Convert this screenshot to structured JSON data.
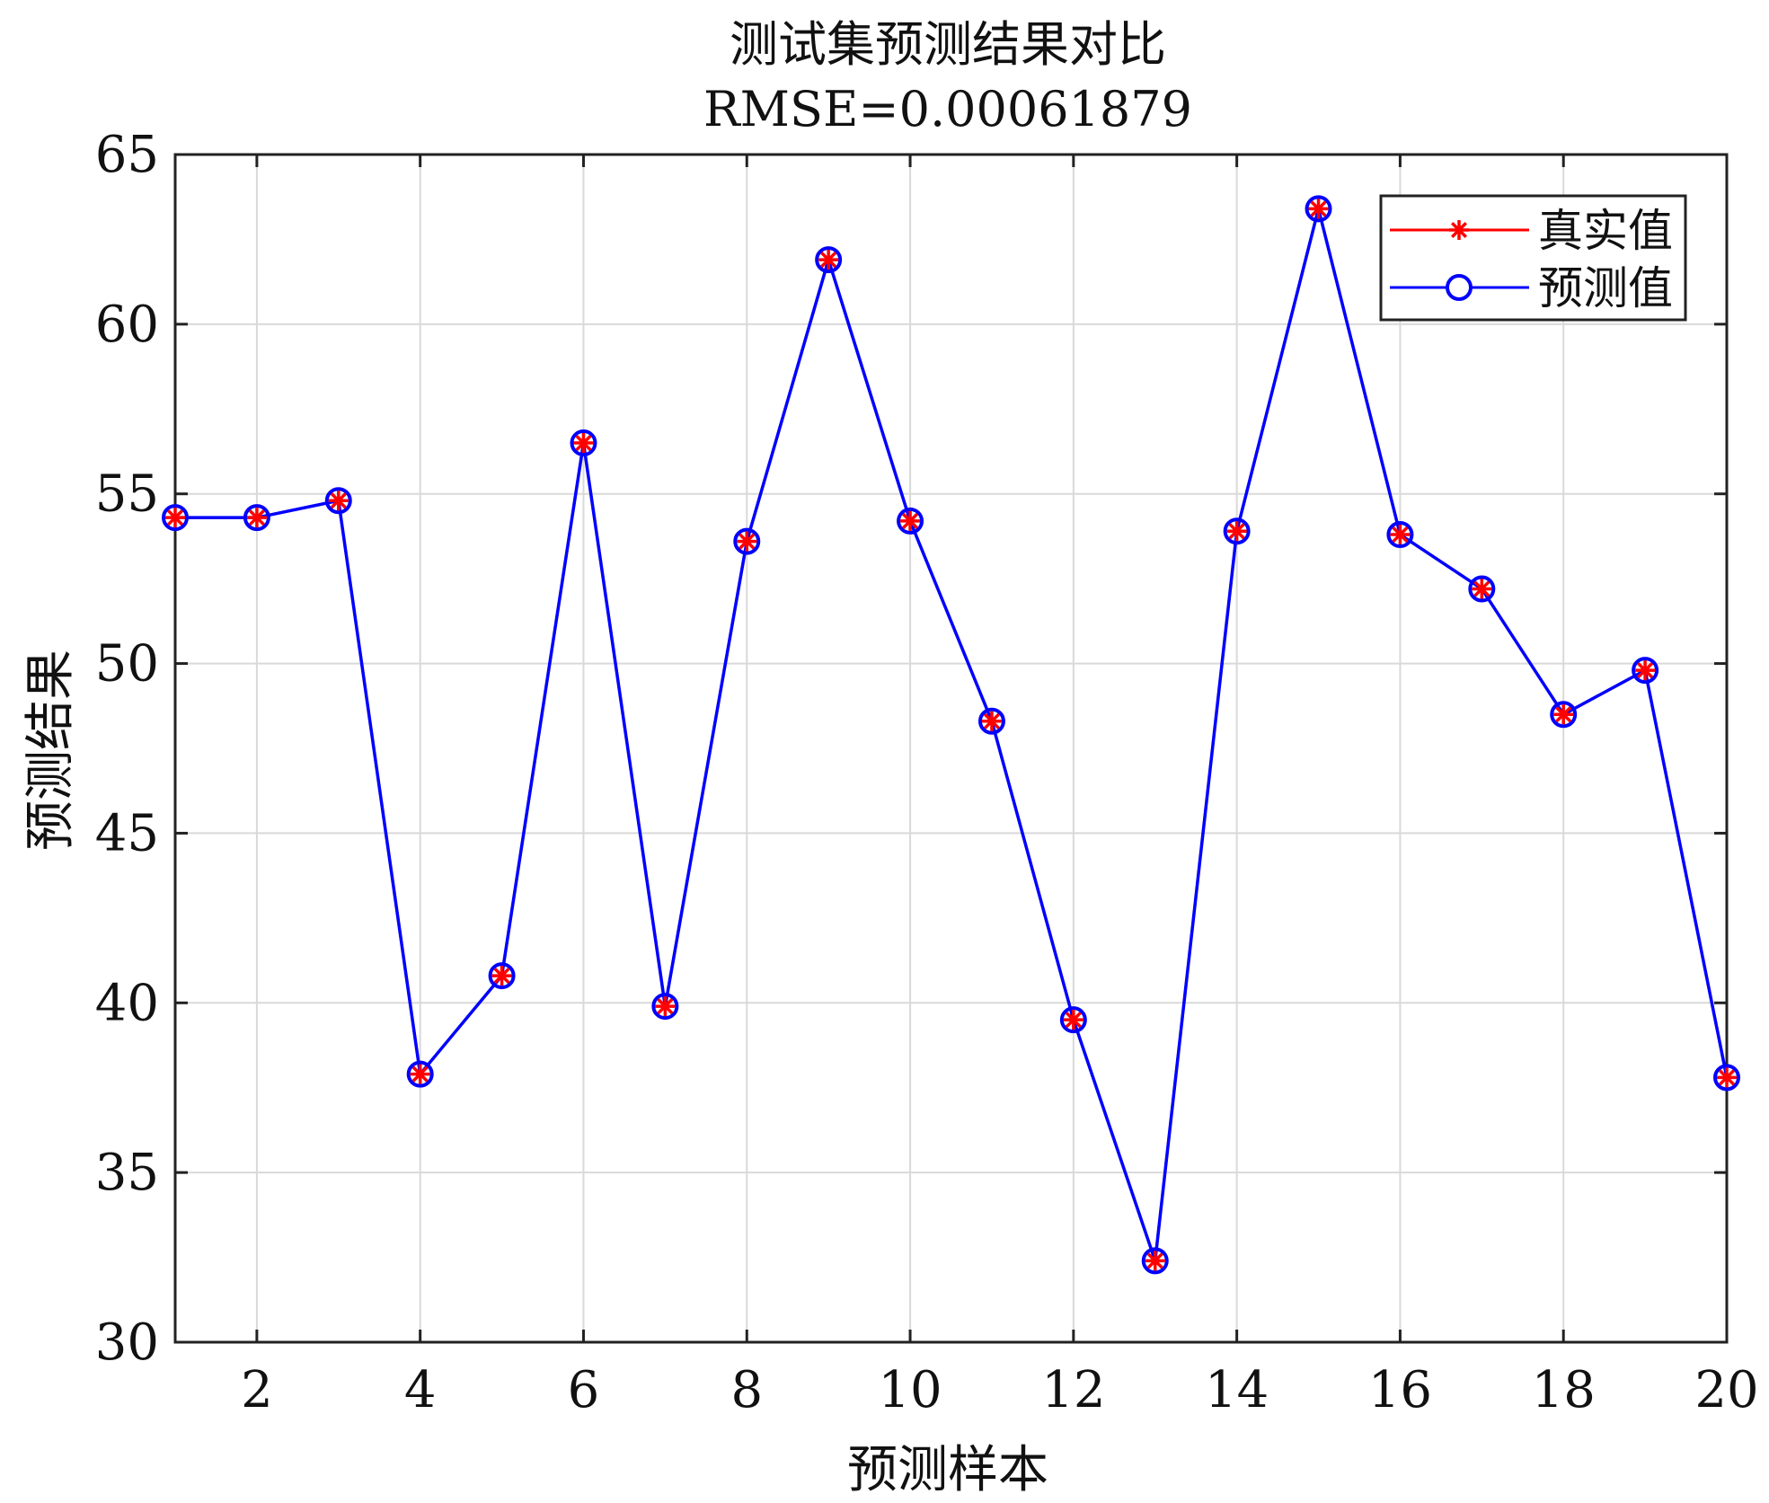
{
  "chart_data": {
    "type": "line",
    "title": "测试集预测结果对比",
    "subtitle": "RMSE=0.00061879",
    "xlabel": "预测样本",
    "ylabel": "预测结果",
    "xlim": [
      1,
      20
    ],
    "ylim": [
      30,
      65
    ],
    "xticks": [
      2,
      4,
      6,
      8,
      10,
      12,
      14,
      16,
      18,
      20
    ],
    "yticks": [
      30,
      35,
      40,
      45,
      50,
      55,
      60,
      65
    ],
    "grid": true,
    "legend_position": "top-right",
    "x": [
      1,
      2,
      3,
      4,
      5,
      6,
      7,
      8,
      9,
      10,
      11,
      12,
      13,
      14,
      15,
      16,
      17,
      18,
      19,
      20
    ],
    "series": [
      {
        "name": "真实值",
        "color": "#ff0000",
        "marker": "asterisk",
        "values": [
          54.3,
          54.3,
          54.8,
          37.9,
          40.8,
          56.5,
          39.9,
          53.6,
          61.9,
          54.2,
          48.3,
          39.5,
          32.4,
          53.9,
          63.4,
          53.8,
          52.2,
          48.5,
          49.8,
          37.8
        ]
      },
      {
        "name": "预测值",
        "color": "#0000ff",
        "marker": "circle",
        "values": [
          54.3,
          54.3,
          54.8,
          37.9,
          40.8,
          56.5,
          39.9,
          53.6,
          61.9,
          54.2,
          48.3,
          39.5,
          32.4,
          53.9,
          63.4,
          53.8,
          52.2,
          48.5,
          49.8,
          37.8
        ]
      }
    ]
  }
}
